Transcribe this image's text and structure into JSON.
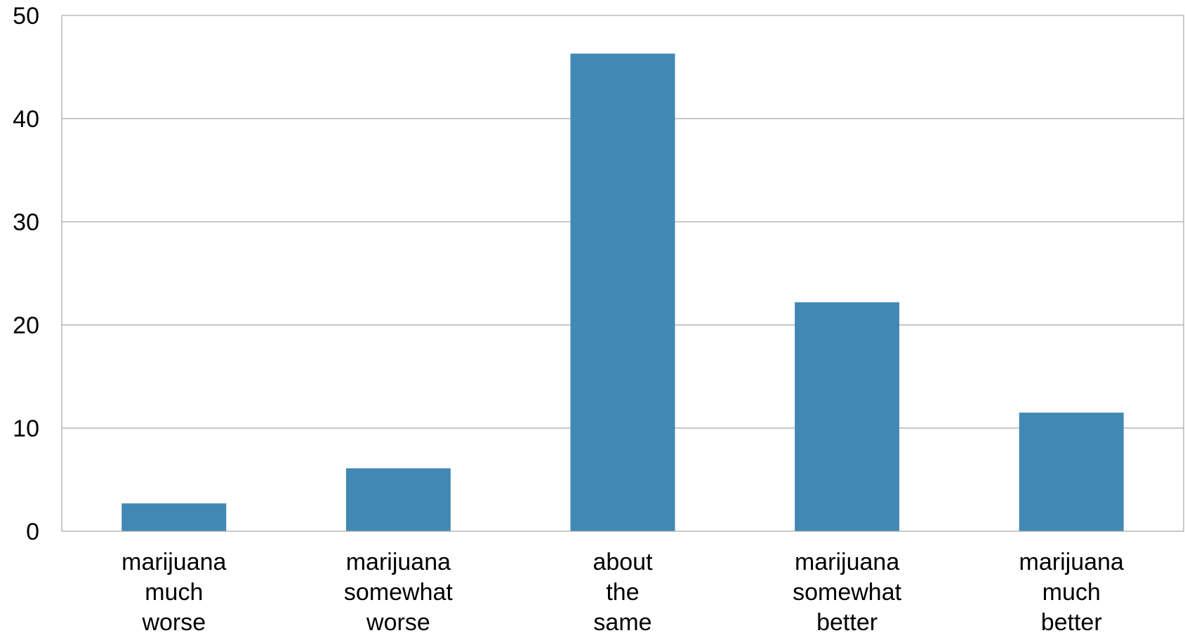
{
  "chart_data": {
    "type": "bar",
    "categories": [
      [
        "marijuana",
        "much",
        "worse"
      ],
      [
        "marijuana",
        "somewhat",
        "worse"
      ],
      [
        "about",
        "the",
        "same"
      ],
      [
        "marijuana",
        "somewhat",
        "better"
      ],
      [
        "marijuana",
        "much",
        "better"
      ]
    ],
    "values": [
      2.7,
      6.1,
      46.3,
      22.2,
      11.5
    ],
    "title": "",
    "xlabel": "",
    "ylabel": "",
    "ylim": [
      0,
      50
    ],
    "yticks": [
      0,
      10,
      20,
      30,
      40,
      50
    ],
    "grid": true,
    "legend": "none",
    "bar_color": "#4189b4",
    "grid_color": "#a6a6a6"
  }
}
